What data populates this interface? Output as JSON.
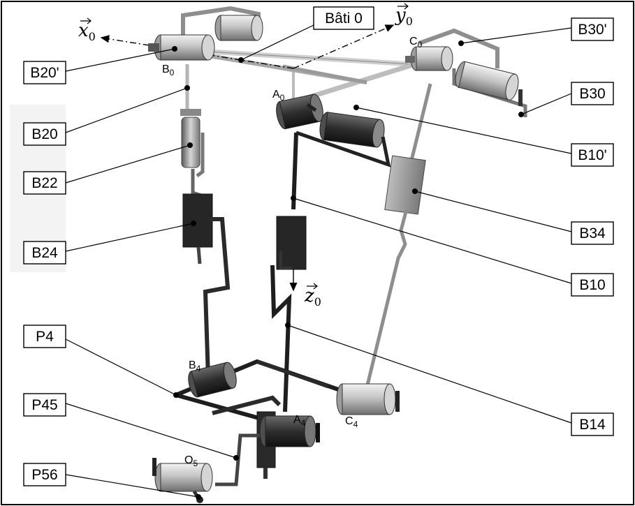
{
  "labels": {
    "bati0": "Bâti 0",
    "b20p": "B20'",
    "b20": "B20",
    "b22": "B22",
    "b24": "B24",
    "p4": "P4",
    "p45": "P45",
    "p56": "P56",
    "b30p": "B30'",
    "b30": "B30",
    "b10p": "B10'",
    "b34": "B34",
    "b10": "B10",
    "b14": "B14"
  },
  "points": {
    "a0": "A",
    "a0_sub": "0",
    "b0": "B",
    "b0_sub": "0",
    "c0": "C",
    "c0_sub": "0",
    "a4": "A",
    "a4_sub": "4",
    "b4": "B",
    "b4_sub": "4",
    "c4": "C",
    "c4_sub": "4",
    "o5": "O",
    "o5_sub": "5"
  },
  "axes": {
    "x": "x",
    "x_sub": "0",
    "y": "y",
    "y_sub": "0",
    "z": "z",
    "z_sub": "0"
  },
  "colors": {
    "dark_part": "#2b2b2b",
    "mid_part": "#8a8a8a",
    "light_part": "#c8c8c8"
  }
}
